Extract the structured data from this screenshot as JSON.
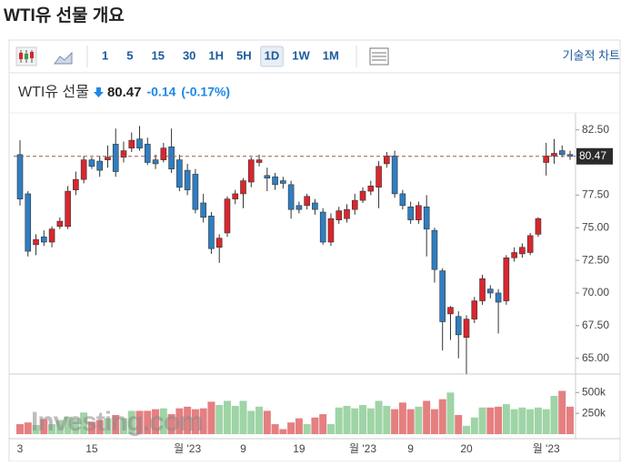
{
  "page": {
    "title": "WTI유 선물 개요"
  },
  "toolbar": {
    "buttons": [
      "1",
      "5",
      "15",
      "30",
      "1H",
      "5H",
      "1D",
      "1W",
      "1M"
    ],
    "selected": "1D",
    "right_label": "기술적 차트"
  },
  "quote": {
    "name": "WTI유 선물",
    "last": 80.47,
    "change": -0.14,
    "change_pct": "(-0.17%)"
  },
  "watermark": "Investing.com",
  "chart_data": {
    "type": "candlestick",
    "categories": [
      "3",
      null,
      null,
      null,
      null,
      null,
      null,
      null,
      null,
      "15",
      null,
      null,
      null,
      null,
      null,
      null,
      null,
      null,
      null,
      null,
      null,
      "월 '23",
      null,
      null,
      null,
      null,
      null,
      null,
      "9",
      null,
      null,
      null,
      null,
      null,
      null,
      "19",
      null,
      null,
      null,
      null,
      null,
      null,
      null,
      "월 '23",
      null,
      null,
      null,
      null,
      null,
      "9",
      null,
      null,
      null,
      null,
      null,
      null,
      "20",
      null,
      null,
      null,
      null,
      null,
      null,
      null,
      null,
      null,
      "월 '23",
      null,
      null,
      null
    ],
    "open": [
      80.6,
      77.6,
      73.7,
      74.3,
      73.9,
      75.1,
      75.1,
      77.9,
      78.7,
      80.2,
      80.1,
      80.2,
      81.4,
      80.4,
      81.1,
      81.8,
      81.4,
      80.2,
      80.2,
      81.2,
      80.2,
      79.4,
      79.1,
      76.9,
      75.9,
      73.5,
      74.6,
      77.2,
      77.6,
      78.5,
      80.0,
      79.0,
      78.9,
      78.6,
      78.3,
      76.7,
      76.7,
      76.9,
      76.2,
      73.9,
      75.6,
      75.7,
      76.4,
      77.1,
      77.8,
      78.1,
      79.9,
      80.5,
      77.6,
      76.6,
      75.6,
      76.6,
      74.8,
      71.7,
      68.4,
      68.2,
      66.6,
      68.0,
      69.4,
      70.3,
      70.0,
      69.4,
      72.7,
      73.0,
      73.1,
      74.5,
      80.0,
      80.5,
      80.9,
      80.61
    ],
    "high": [
      81.7,
      77.8,
      74.5,
      74.8,
      75.1,
      75.8,
      78.2,
      79.3,
      80.5,
      80.4,
      80.5,
      81.3,
      82.6,
      81.6,
      82.3,
      82.8,
      81.9,
      80.6,
      81.5,
      82.6,
      80.6,
      79.9,
      79.5,
      77.6,
      76.2,
      74.5,
      77.4,
      77.9,
      78.8,
      80.4,
      80.6,
      79.6,
      79.2,
      78.9,
      78.6,
      77.0,
      77.6,
      77.2,
      76.5,
      76.1,
      76.6,
      76.8,
      77.6,
      78.1,
      78.6,
      80.1,
      80.8,
      80.9,
      77.9,
      77.0,
      77.0,
      77.5,
      75.0,
      71.9,
      69.0,
      68.6,
      68.3,
      69.7,
      71.4,
      70.6,
      70.3,
      72.9,
      73.5,
      73.8,
      74.6,
      75.8,
      81.5,
      81.8,
      81.3,
      80.9
    ],
    "low": [
      76.7,
      72.8,
      72.9,
      73.6,
      73.5,
      74.9,
      74.9,
      77.5,
      78.4,
      79.5,
      78.9,
      79.6,
      78.9,
      80.0,
      80.8,
      80.9,
      79.8,
      79.5,
      80.0,
      79.2,
      77.8,
      77.5,
      76.1,
      75.4,
      73.0,
      72.3,
      74.3,
      76.8,
      76.5,
      78.1,
      79.7,
      77.8,
      77.9,
      78.0,
      75.7,
      76.1,
      76.4,
      76.0,
      73.7,
      73.6,
      75.3,
      75.4,
      76.0,
      76.9,
      77.5,
      76.5,
      79.6,
      77.3,
      76.4,
      75.3,
      75.3,
      72.8,
      70.8,
      65.6,
      66.4,
      65.0,
      63.8,
      67.7,
      69.1,
      69.6,
      66.9,
      69.1,
      72.4,
      72.7,
      72.9,
      74.3,
      79.0,
      79.9,
      80.4,
      80.2
    ],
    "close": [
      77.2,
      73.2,
      74.1,
      73.9,
      74.9,
      75.5,
      77.8,
      78.7,
      80.2,
      79.7,
      79.4,
      80.4,
      79.3,
      80.9,
      81.7,
      81.1,
      80.0,
      79.9,
      81.1,
      79.5,
      78.1,
      77.9,
      76.4,
      75.8,
      73.4,
      74.2,
      77.2,
      77.6,
      78.6,
      80.2,
      80.2,
      78.8,
      78.3,
      78.4,
      76.4,
      76.4,
      77.4,
      76.4,
      73.9,
      75.7,
      76.3,
      76.4,
      77.1,
      77.8,
      78.2,
      79.7,
      80.5,
      77.6,
      76.7,
      75.6,
      76.7,
      74.9,
      71.8,
      67.8,
      68.9,
      66.8,
      68.0,
      69.4,
      71.1,
      70.0,
      69.3,
      72.7,
      73.1,
      73.5,
      74.4,
      75.7,
      80.5,
      80.7,
      80.6,
      80.47
    ],
    "up_color": "#d9262e",
    "down_color": "#2f7ec1",
    "last": 80.47,
    "ylim": [
      64,
      83.8
    ],
    "yticks": [
      {
        "value": 65,
        "label": "65.00"
      },
      {
        "value": 67.5,
        "label": "67.50"
      },
      {
        "value": 70,
        "label": "70.00"
      },
      {
        "value": 72.5,
        "label": "72.50"
      },
      {
        "value": 75,
        "label": "75.00"
      },
      {
        "value": 77.5,
        "label": "77.50"
      },
      {
        "value": 82.5,
        "label": "82.50"
      }
    ],
    "volume": {
      "values": [
        120000,
        140000,
        110000,
        180000,
        120000,
        170000,
        210000,
        190000,
        260000,
        150000,
        170000,
        190000,
        230000,
        190000,
        280000,
        280000,
        280000,
        300000,
        310000,
        240000,
        310000,
        330000,
        300000,
        310000,
        390000,
        350000,
        400000,
        340000,
        400000,
        280000,
        330000,
        280000,
        120000,
        60000,
        140000,
        190000,
        120000,
        200000,
        240000,
        120000,
        320000,
        340000,
        310000,
        350000,
        310000,
        400000,
        340000,
        300000,
        380000,
        300000,
        330000,
        400000,
        300000,
        420000,
        500000,
        230000,
        100000,
        200000,
        320000,
        320000,
        330000,
        360000,
        300000,
        320000,
        300000,
        320000,
        300000,
        460000,
        520000,
        330000
      ],
      "up_color": "#9fd4a6",
      "down_color": "#e57f80",
      "ylim": [
        0,
        700000
      ],
      "yticks": [
        {
          "value": 250000,
          "label": "250k"
        },
        {
          "value": 500000,
          "label": "500k"
        }
      ]
    }
  }
}
